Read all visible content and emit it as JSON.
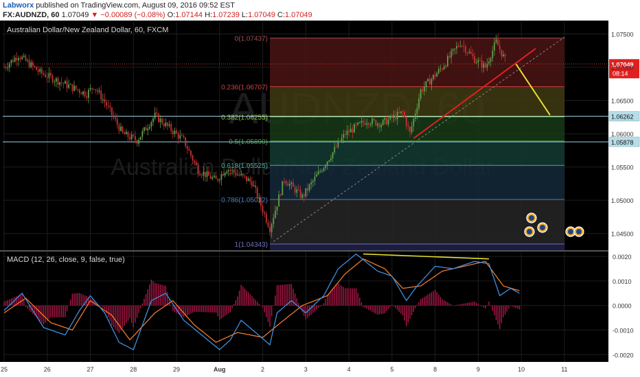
{
  "header": {
    "author": "Labworx",
    "published_text": "published on TradingView.com, August 09, 2016 09:52 EST",
    "symbol": "FX:AUDNZD, 60",
    "last": "1.07049",
    "change": "▼ −0.00089 (−0.08%)",
    "o_label": "O:",
    "o_value": "1.07144",
    "h_label": "H:",
    "h_value": "1.07239",
    "l_label": "L:",
    "l_value": "1.07049",
    "c_label": "C:",
    "c_value": "1.07049"
  },
  "chart_data": [
    {
      "type": "candlestick",
      "title": "Australian Dollar/New Zealand Dollar, 60, FXCM",
      "watermark_symbol": "AUDNZD, 60",
      "watermark_name": "Australian Dollar/New Zealand Dollar",
      "y_ticks": [
        "1.07500",
        "1.07000",
        "1.06500",
        "1.06000",
        "1.05500",
        "1.05000",
        "1.04500"
      ],
      "y_tick_values": [
        1.075,
        1.07,
        1.065,
        1.06,
        1.055,
        1.05,
        1.045
      ],
      "ylim": [
        1.0425,
        1.0768
      ],
      "x_ticks": [
        "25",
        "26",
        "27",
        "28",
        "29",
        "Aug",
        "2",
        "3",
        "4",
        "5",
        "8",
        "9",
        "10",
        "11"
      ],
      "x_tick_index": [
        0,
        24,
        48,
        72,
        96,
        120,
        144,
        168,
        192,
        216,
        240,
        264,
        288,
        312
      ],
      "n_bars": 280,
      "price_label": {
        "value": "1.07049",
        "countdown": "08:14"
      },
      "horizontal_levels": [
        {
          "value": "1.06262"
        },
        {
          "value": "1.05878"
        }
      ],
      "fibonacci": {
        "start_index": 148,
        "end_index": 312,
        "levels": [
          {
            "label": "0(1.07437)",
            "value": 1.07437,
            "color": "#a05050",
            "fill": "#4a1414"
          },
          {
            "label": "0.236(1.06707)",
            "value": 1.06707,
            "color": "#d04040",
            "fill": "#3f3a12"
          },
          {
            "label": "0.382(1.06255)",
            "value": 1.06255,
            "color": "#9ccc40",
            "fill": "#183a18"
          },
          {
            "label": "0.5(1.05890)",
            "value": 1.0589,
            "color": "#40a040",
            "fill": "#143a33"
          },
          {
            "label": "0.618(1.05525)",
            "value": 1.05525,
            "color": "#40b0a0",
            "fill": "#14283a"
          },
          {
            "label": "0.786(1.05012)",
            "value": 1.05012,
            "color": "#4080c0",
            "fill": "#262626"
          },
          {
            "label": "1(1.04343)",
            "value": 1.04343,
            "color": "#7070c0",
            "fill": "#1c1c3e"
          }
        ]
      },
      "trendlines": [
        {
          "color": "#e02020",
          "x1": 228,
          "y1": 1.0593,
          "x2": 296,
          "y2": 1.0728
        },
        {
          "color": "#e6e030",
          "x1": 285,
          "y1": 1.0705,
          "x2": 304,
          "y2": 1.0628
        },
        {
          "color": "#888888",
          "dashed": true,
          "x1": 150,
          "y1": 1.0438,
          "x2": 312,
          "y2": 1.0745
        }
      ],
      "key_points": [
        [
          0,
          1.07
        ],
        [
          8,
          1.0718
        ],
        [
          20,
          1.0692
        ],
        [
          35,
          1.0673
        ],
        [
          46,
          1.066
        ],
        [
          50,
          1.0672
        ],
        [
          56,
          1.0648
        ],
        [
          66,
          1.06
        ],
        [
          74,
          1.059
        ],
        [
          84,
          1.0627
        ],
        [
          94,
          1.0604
        ],
        [
          100,
          1.059
        ],
        [
          108,
          1.0545
        ],
        [
          118,
          1.053
        ],
        [
          124,
          1.0548
        ],
        [
          138,
          1.0527
        ],
        [
          148,
          1.0458
        ],
        [
          156,
          1.0532
        ],
        [
          166,
          1.0505
        ],
        [
          178,
          1.0552
        ],
        [
          190,
          1.06
        ],
        [
          202,
          1.062
        ],
        [
          210,
          1.0615
        ],
        [
          222,
          1.0632
        ],
        [
          226,
          1.06
        ],
        [
          232,
          1.0665
        ],
        [
          244,
          1.07
        ],
        [
          254,
          1.0737
        ],
        [
          262,
          1.0712
        ],
        [
          268,
          1.07
        ],
        [
          274,
          1.0738
        ],
        [
          280,
          1.0705
        ]
      ]
    },
    {
      "type": "line",
      "title": "MACD (12, 26, close, 9, false, true)",
      "y_ticks": [
        "0.0020",
        "0.0010",
        "0.0000",
        "-0.0010",
        "-0.0020"
      ],
      "y_tick_values": [
        0.002,
        0.001,
        0.0,
        -0.001,
        -0.002
      ],
      "ylim": [
        -0.0023,
        0.0022
      ],
      "divergence_line": {
        "color": "#e6e030",
        "x1": 200,
        "y1": 0.0021,
        "x2": 270,
        "y2": 0.0019
      },
      "macd_points": [
        [
          0,
          -0.0002
        ],
        [
          10,
          0.0005
        ],
        [
          22,
          -0.0009
        ],
        [
          34,
          -0.0012
        ],
        [
          42,
          -0.0002
        ],
        [
          48,
          0.0004
        ],
        [
          56,
          -0.0003
        ],
        [
          64,
          -0.0015
        ],
        [
          72,
          -0.0018
        ],
        [
          82,
          0.0002
        ],
        [
          90,
          0.0005
        ],
        [
          100,
          -0.0006
        ],
        [
          110,
          -0.0012
        ],
        [
          120,
          -0.0018
        ],
        [
          126,
          -0.0014
        ],
        [
          132,
          -0.0006
        ],
        [
          140,
          -0.0011
        ],
        [
          148,
          -0.0016
        ],
        [
          152,
          -0.0003
        ],
        [
          160,
          0.0002
        ],
        [
          168,
          -0.0003
        ],
        [
          178,
          0.0004
        ],
        [
          186,
          0.0015
        ],
        [
          196,
          0.0021
        ],
        [
          208,
          0.0014
        ],
        [
          216,
          0.0012
        ],
        [
          224,
          0.0002
        ],
        [
          230,
          0.0008
        ],
        [
          240,
          0.0016
        ],
        [
          250,
          0.0015
        ],
        [
          262,
          0.0018
        ],
        [
          270,
          0.0017
        ],
        [
          276,
          0.0004
        ],
        [
          282,
          0.0007
        ],
        [
          287,
          0.0005
        ]
      ],
      "signal_points": [
        [
          0,
          -0.0003
        ],
        [
          12,
          0.0003
        ],
        [
          26,
          -0.0007
        ],
        [
          38,
          -0.001
        ],
        [
          48,
          0.0002
        ],
        [
          60,
          -0.0004
        ],
        [
          70,
          -0.0014
        ],
        [
          84,
          -0.0003
        ],
        [
          94,
          0.0002
        ],
        [
          106,
          -0.0008
        ],
        [
          118,
          -0.0015
        ],
        [
          130,
          -0.0011
        ],
        [
          144,
          -0.0013
        ],
        [
          154,
          -0.0007
        ],
        [
          166,
          0.0
        ],
        [
          180,
          0.0004
        ],
        [
          190,
          0.0013
        ],
        [
          200,
          0.0019
        ],
        [
          212,
          0.0015
        ],
        [
          222,
          0.0007
        ],
        [
          232,
          0.0008
        ],
        [
          244,
          0.0014
        ],
        [
          256,
          0.0016
        ],
        [
          268,
          0.0018
        ],
        [
          278,
          0.0008
        ],
        [
          287,
          0.0006
        ]
      ]
    }
  ],
  "colors": {
    "background": "#000000",
    "grid": "#1e1e1e",
    "axis_text": "#333333",
    "up_candle": "#5fa04a",
    "down_candle": "#c83232",
    "macd": "#3f8fe0",
    "signal": "#f07a2a",
    "hist": "#b01848",
    "price_label": "#e02020",
    "level_label": "#b7dde8"
  },
  "icons": [
    "calendar-event-icon"
  ]
}
